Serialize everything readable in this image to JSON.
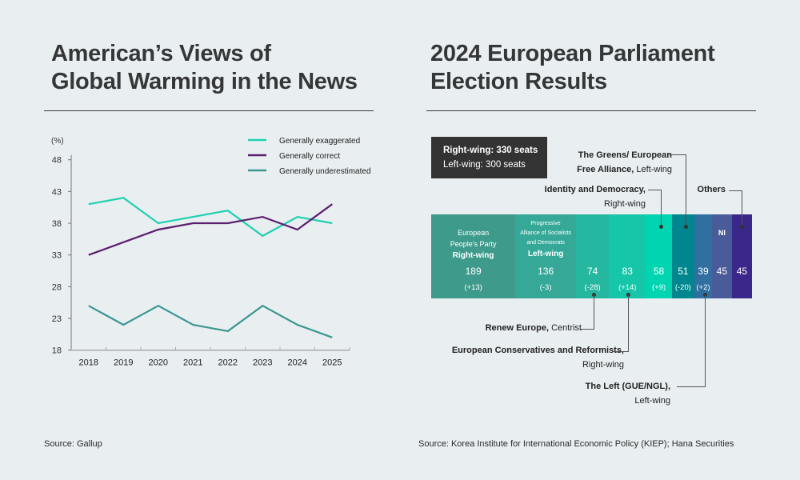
{
  "left_panel": {
    "title_line1": "American’s Views of",
    "title_line2": "Global Warming in the News",
    "source": "Source: Gallup"
  },
  "right_panel": {
    "title_line1": "2024 European Parliament",
    "title_line2": "Election Results",
    "source": "Source: Korea Institute for International Economic Policy (KIEP); Hana Securities",
    "summary": {
      "right_wing": "Right-wing: 330 seats",
      "left_wing": "Left-wing: 300 seats"
    },
    "annotations": {
      "greens_bold1": "The Greens/ European",
      "greens_bold2": "Free Alliance,",
      "greens_normal": " Left-wing",
      "id_bold": "Identity and Democracy,",
      "id_normal": "Right-wing",
      "others_bold": "Others",
      "renew_bold": "Renew Europe,",
      "renew_normal": " Centrist",
      "ecr_bold": "European Conservatives and Reformists,",
      "ecr_normal": "Right-wing",
      "left_bold": "The Left (GUE/NGL),",
      "left_normal": "Left-wing"
    }
  },
  "chart_data": [
    {
      "type": "line",
      "title": "American’s Views of Global Warming in the News",
      "ylabel": "(%)",
      "xlabel": "",
      "x": [
        "2018",
        "2019",
        "2020",
        "2021",
        "2022",
        "2023",
        "2024",
        "2025"
      ],
      "ylim": [
        18,
        48
      ],
      "yticks": [
        18,
        23,
        28,
        33,
        38,
        43,
        48
      ],
      "grid": false,
      "legend": "top-right",
      "series": [
        {
          "name": "Generally exaggerated",
          "color": "#1fd1b0",
          "values": [
            41,
            42,
            38,
            39,
            40,
            36,
            39,
            38
          ]
        },
        {
          "name": "Generally correct",
          "color": "#5b1f6e",
          "values": [
            33,
            35,
            37,
            38,
            38,
            39,
            37,
            41
          ]
        },
        {
          "name": "Generally underestimated",
          "color": "#3b978f",
          "values": [
            25,
            22,
            25,
            22,
            21,
            25,
            22,
            20
          ]
        }
      ]
    },
    {
      "type": "bar",
      "orientation": "horizontal-stacked",
      "title": "2024 European Parliament Election Results",
      "total_seats": 720,
      "categories": [
        "European People's Party",
        "Progressive Alliance of Socialists and Democrats",
        "Renew Europe",
        "European Conservatives and Reformists",
        "Identity and Democracy",
        "The Greens/ European Free Alliance",
        "The Left (GUE/NGL)",
        "NI",
        "Others"
      ],
      "segments": [
        {
          "name": "European People's Party",
          "label_lines": [
            "European",
            "People's Party"
          ],
          "wing": "Right-wing",
          "seats": 189,
          "change": "(+13)",
          "color": "#3e9b8c"
        },
        {
          "name": "Progressive Alliance of Socialists and Democrats",
          "label_lines": [
            "Progressive",
            "Alliance of Socialists",
            "and Democrats"
          ],
          "wing": "Left-wing",
          "seats": 136,
          "change": "(-3)",
          "color": "#35a898"
        },
        {
          "name": "Renew Europe",
          "seats": 74,
          "change": "(-28)",
          "color": "#25b79f"
        },
        {
          "name": "European Conservatives and Reformists",
          "seats": 83,
          "change": "(+14)",
          "color": "#15c6a8"
        },
        {
          "name": "Identity and Democracy",
          "seats": 58,
          "change": "(+9)",
          "color": "#00d5b1"
        },
        {
          "name": "The Greens/ European Free Alliance",
          "seats": 51,
          "change": "(-20)",
          "color": "#00868f"
        },
        {
          "name": "The Left (GUE/NGL)",
          "seats": 39,
          "change": "(+2)",
          "color": "#306f9f"
        },
        {
          "name": "NI",
          "inner_label": "NI",
          "seats": 45,
          "change": "",
          "color": "#4a5b99"
        },
        {
          "name": "Others",
          "seats": 45,
          "change": "",
          "color": "#39278a"
        }
      ]
    }
  ]
}
